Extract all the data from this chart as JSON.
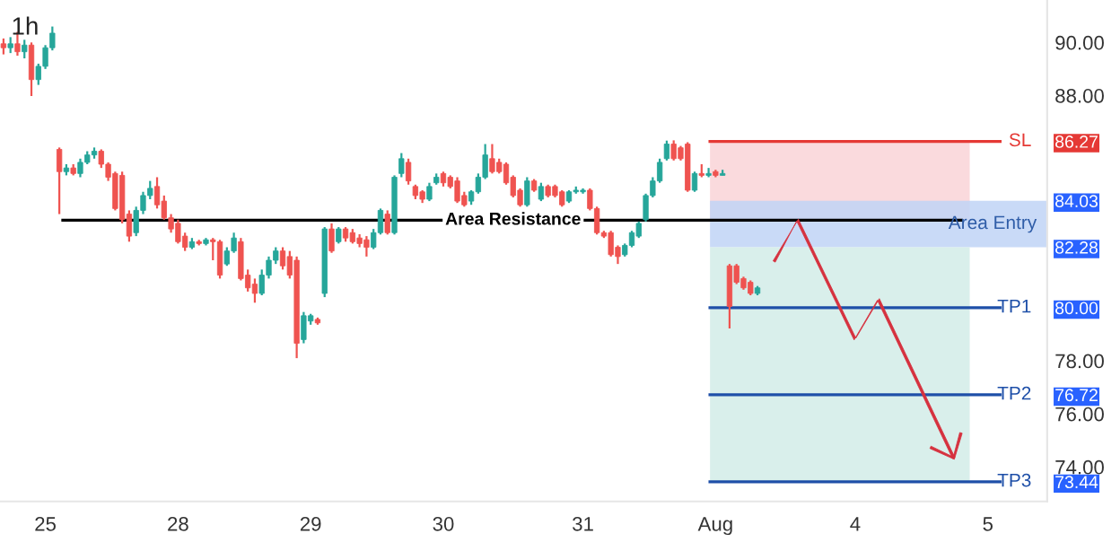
{
  "chart_data": {
    "type": "candlestick",
    "title": "1h",
    "categories": [
      null,
      null,
      null,
      null,
      null,
      null,
      "25",
      null,
      null,
      null,
      null,
      null,
      null,
      null,
      null,
      null,
      null,
      null,
      null,
      null,
      null,
      null,
      null,
      null,
      null,
      "28",
      null,
      null,
      null,
      null,
      null,
      null,
      null,
      null,
      null,
      null,
      null,
      null,
      null,
      null,
      null,
      null,
      null,
      null,
      "29",
      null,
      null,
      null,
      null,
      null,
      null,
      null,
      null,
      null,
      null,
      null,
      null,
      null,
      null,
      null,
      null,
      null,
      null,
      "30",
      null,
      null,
      null,
      null,
      null,
      null,
      null,
      null,
      null,
      null,
      null,
      null,
      null,
      null,
      null,
      null,
      null,
      null,
      null,
      "31",
      null,
      null,
      null,
      null,
      null,
      null,
      null,
      null,
      null,
      null,
      null,
      null,
      null,
      null,
      null,
      null,
      null,
      null,
      "Aug",
      null,
      null,
      null,
      null,
      null,
      null,
      null,
      null,
      null,
      null,
      null,
      null,
      null,
      null,
      null,
      null,
      null,
      null,
      null,
      "4",
      null,
      null,
      null,
      null,
      null,
      null,
      null,
      null,
      null,
      null,
      null,
      null,
      null,
      null,
      null,
      null,
      null,
      null,
      "5",
      null,
      null,
      null,
      null,
      null,
      null,
      null,
      null
    ],
    "ohlc": [
      [
        89.95,
        90.15,
        89.55,
        89.8
      ],
      [
        89.8,
        90.2,
        89.6,
        89.95
      ],
      [
        89.95,
        90.4,
        89.5,
        89.65
      ],
      [
        89.65,
        90.1,
        89.4,
        89.9
      ],
      [
        89.9,
        90.0,
        87.98,
        88.6
      ],
      [
        88.6,
        89.2,
        88.4,
        89.1
      ],
      [
        89.1,
        89.9,
        89.0,
        89.8
      ],
      [
        89.8,
        90.6,
        89.7,
        90.35
      ],
      [
        85.97,
        86.04,
        83.53,
        85.13
      ],
      [
        85.13,
        85.41,
        84.99,
        85.27
      ],
      [
        85.27,
        85.41,
        84.99,
        85.06
      ],
      [
        85.06,
        85.62,
        84.92,
        85.48
      ],
      [
        85.48,
        85.9,
        85.41,
        85.76
      ],
      [
        85.76,
        86.04,
        85.62,
        85.9
      ],
      [
        85.9,
        85.97,
        85.27,
        85.41
      ],
      [
        85.41,
        85.48,
        84.78,
        84.92
      ],
      [
        85.06,
        85.13,
        83.67,
        83.74
      ],
      [
        84.99,
        85.13,
        83.18,
        83.32
      ],
      [
        83.53,
        83.67,
        82.49,
        82.7
      ],
      [
        82.83,
        83.81,
        82.7,
        83.67
      ],
      [
        83.67,
        84.37,
        83.53,
        84.23
      ],
      [
        84.23,
        84.78,
        84.09,
        84.5
      ],
      [
        84.57,
        84.92,
        83.74,
        83.88
      ],
      [
        84.02,
        84.23,
        83.32,
        83.39
      ],
      [
        83.39,
        83.53,
        82.83,
        82.97
      ],
      [
        83.18,
        83.32,
        82.42,
        82.49
      ],
      [
        82.7,
        82.83,
        82.14,
        82.28
      ],
      [
        82.28,
        82.63,
        82.21,
        82.49
      ],
      [
        82.49,
        82.56,
        82.35,
        82.42
      ],
      [
        82.42,
        82.63,
        82.35,
        82.56
      ],
      [
        82.56,
        82.63,
        81.79,
        82.49
      ],
      [
        82.49,
        82.56,
        81.1,
        81.23
      ],
      [
        81.65,
        82.28,
        81.58,
        82.14
      ],
      [
        82.14,
        82.83,
        82.07,
        82.63
      ],
      [
        82.49,
        82.63,
        81.03,
        81.1
      ],
      [
        81.23,
        81.44,
        80.61,
        80.75
      ],
      [
        80.89,
        81.1,
        80.19,
        80.54
      ],
      [
        80.54,
        81.44,
        80.47,
        81.23
      ],
      [
        81.23,
        81.93,
        81.1,
        81.79
      ],
      [
        81.79,
        82.28,
        81.65,
        82.14
      ],
      [
        82.14,
        82.28,
        81.44,
        81.58
      ],
      [
        81.93,
        82.14,
        81.1,
        81.23
      ],
      [
        81.79,
        81.93,
        78.1,
        78.66
      ],
      [
        78.8,
        79.84,
        78.66,
        79.7
      ],
      [
        79.5,
        79.77,
        79.36,
        79.7
      ],
      [
        79.56,
        79.63,
        79.36,
        79.43
      ],
      [
        80.54,
        83.04,
        80.4,
        82.97
      ],
      [
        82.97,
        83.18,
        82.07,
        82.14
      ],
      [
        82.49,
        83.04,
        82.42,
        82.97
      ],
      [
        82.97,
        83.04,
        82.49,
        82.63
      ],
      [
        82.83,
        82.97,
        82.42,
        82.49
      ],
      [
        82.63,
        82.77,
        82.28,
        82.42
      ],
      [
        82.56,
        82.7,
        81.93,
        82.28
      ],
      [
        82.28,
        82.97,
        82.21,
        82.83
      ],
      [
        82.83,
        83.74,
        82.76,
        83.67
      ],
      [
        83.53,
        83.67,
        82.76,
        82.83
      ],
      [
        82.83,
        84.99,
        82.76,
        84.92
      ],
      [
        85.06,
        85.83,
        84.92,
        85.62
      ],
      [
        85.48,
        85.62,
        84.64,
        84.78
      ],
      [
        84.57,
        84.64,
        84.09,
        84.23
      ],
      [
        84.37,
        84.43,
        83.95,
        84.09
      ],
      [
        84.09,
        84.71,
        84.02,
        84.57
      ],
      [
        84.71,
        85.06,
        84.64,
        84.92
      ],
      [
        85.06,
        85.13,
        84.57,
        84.71
      ],
      [
        84.92,
        84.99,
        84.5,
        84.57
      ],
      [
        84.78,
        84.92,
        83.95,
        84.02
      ],
      [
        84.23,
        84.37,
        83.81,
        83.88
      ],
      [
        84.02,
        84.43,
        83.88,
        84.37
      ],
      [
        84.37,
        85.06,
        84.3,
        84.92
      ],
      [
        84.92,
        86.17,
        84.85,
        85.76
      ],
      [
        85.62,
        86.17,
        85.06,
        85.13
      ],
      [
        85.48,
        85.62,
        85.06,
        85.13
      ],
      [
        85.41,
        85.48,
        84.64,
        84.71
      ],
      [
        84.92,
        84.99,
        84.16,
        84.23
      ],
      [
        84.43,
        84.5,
        83.81,
        83.88
      ],
      [
        83.88,
        84.92,
        83.81,
        84.78
      ],
      [
        84.78,
        84.85,
        84.37,
        84.43
      ],
      [
        84.09,
        84.71,
        84.02,
        84.57
      ],
      [
        84.57,
        84.64,
        84.16,
        84.23
      ],
      [
        84.57,
        84.64,
        84.16,
        84.23
      ],
      [
        84.37,
        84.43,
        83.81,
        83.88
      ],
      [
        84.02,
        84.43,
        83.95,
        84.37
      ],
      [
        84.37,
        84.57,
        84.3,
        84.43
      ],
      [
        84.37,
        84.5,
        84.3,
        84.43
      ],
      [
        84.43,
        84.5,
        83.67,
        83.74
      ],
      [
        83.74,
        83.81,
        82.76,
        82.83
      ],
      [
        82.83,
        82.9,
        82.63,
        82.7
      ],
      [
        82.83,
        82.9,
        81.93,
        82.0
      ],
      [
        82.28,
        82.35,
        81.65,
        81.93
      ],
      [
        82.0,
        82.42,
        81.93,
        82.35
      ],
      [
        82.35,
        82.9,
        82.28,
        82.83
      ],
      [
        82.7,
        83.25,
        82.63,
        83.18
      ],
      [
        83.32,
        84.3,
        83.25,
        84.23
      ],
      [
        84.23,
        84.92,
        84.16,
        84.78
      ],
      [
        84.78,
        85.62,
        84.71,
        85.48
      ],
      [
        85.62,
        86.3,
        85.55,
        86.17
      ],
      [
        86.17,
        86.31,
        85.55,
        85.62
      ],
      [
        86.03,
        86.1,
        85.55,
        85.62
      ],
      [
        86.17,
        86.24,
        84.37,
        84.43
      ],
      [
        84.43,
        85.13,
        84.37,
        85.06
      ],
      [
        85.06,
        85.41,
        84.92,
        84.99
      ],
      [
        84.99,
        85.27,
        84.92,
        85.06
      ],
      [
        85.13,
        85.2,
        84.92,
        84.99
      ],
      [
        84.99,
        85.2,
        84.99,
        85.06
      ],
      [
        81.58,
        81.65,
        79.22,
        80.05
      ],
      [
        81.58,
        81.65,
        80.89,
        80.96
      ],
      [
        81.1,
        81.17,
        80.68,
        80.75
      ],
      [
        80.96,
        81.03,
        80.47,
        80.54
      ],
      [
        80.54,
        80.82,
        80.47,
        80.75
      ],
      null,
      null,
      null,
      null,
      null,
      null,
      null,
      null,
      null,
      null,
      null,
      null,
      null,
      null,
      null,
      null,
      null,
      null,
      null,
      null,
      null,
      null,
      null,
      null,
      null,
      null,
      null,
      null,
      null,
      null,
      null,
      null,
      null,
      null,
      null,
      null,
      null,
      null,
      null,
      null,
      null
    ],
    "colors": [
      "#ef5350",
      "#26a69a",
      "#ef5350",
      "#26a69a",
      "#ef5350",
      "#26a69a",
      "#26a69a",
      "#26a69a",
      "#ef5350",
      "#26a69a",
      "#ef5350",
      "#26a69a",
      "#26a69a",
      "#26a69a",
      "#ef5350",
      "#ef5350",
      "#ef5350",
      "#ef5350",
      "#ef5350",
      "#26a69a",
      "#26a69a",
      "#26a69a",
      "#ef5350",
      "#ef5350",
      "#ef5350",
      "#ef5350",
      "#ef5350",
      "#26a69a",
      "#ef5350",
      "#26a69a",
      "#ef5350",
      "#ef5350",
      "#26a69a",
      "#26a69a",
      "#ef5350",
      "#ef5350",
      "#ef5350",
      "#26a69a",
      "#26a69a",
      "#26a69a",
      "#ef5350",
      "#ef5350",
      "#ef5350",
      "#26a69a",
      "#26a69a",
      "#ef5350",
      "#26a69a",
      "#ef5350",
      "#26a69a",
      "#ef5350",
      "#ef5350",
      "#ef5350",
      "#ef5350",
      "#26a69a",
      "#26a69a",
      "#ef5350",
      "#26a69a",
      "#26a69a",
      "#ef5350",
      "#ef5350",
      "#ef5350",
      "#26a69a",
      "#26a69a",
      "#ef5350",
      "#ef5350",
      "#ef5350",
      "#ef5350",
      "#26a69a",
      "#26a69a",
      "#26a69a",
      "#ef5350",
      "#ef5350",
      "#ef5350",
      "#ef5350",
      "#ef5350",
      "#26a69a",
      "#ef5350",
      "#26a69a",
      "#ef5350",
      "#ef5350",
      "#ef5350",
      "#26a69a",
      "#26a69a",
      "#26a69a",
      "#ef5350",
      "#ef5350",
      "#ef5350",
      "#ef5350",
      "#ef5350",
      "#26a69a",
      "#26a69a",
      "#26a69a",
      "#26a69a",
      "#26a69a",
      "#26a69a",
      "#26a69a",
      "#ef5350",
      "#ef5350",
      "#ef5350",
      "#26a69a",
      "#ef5350",
      "#26a69a",
      "#ef5350",
      "#26a69a",
      "#ef5350",
      "#ef5350",
      "#ef5350",
      "#ef5350",
      "#26a69a",
      null,
      null,
      null,
      null,
      null,
      null,
      null,
      null,
      null,
      null,
      null,
      null,
      null,
      null,
      null,
      null,
      null,
      null,
      null,
      null,
      null,
      null,
      null,
      null,
      null,
      null,
      null,
      null,
      null,
      null,
      null,
      null,
      null,
      null,
      null,
      null,
      null,
      null,
      null,
      null,
      null
    ],
    "ylim": [
      72.7,
      91.6
    ],
    "yticks": [
      {
        "value": 90,
        "label": "90.00"
      },
      {
        "value": 88,
        "label": "88.00"
      },
      {
        "value": 86.27,
        "label": "86.27"
      },
      {
        "value": 84.03,
        "label": "84.03"
      },
      {
        "value": 82.28,
        "label": "82.28"
      },
      {
        "value": 80,
        "label": "80.00"
      },
      {
        "value": 78,
        "label": "78.00"
      },
      {
        "value": 76.72,
        "label": "76.72"
      },
      {
        "value": 76,
        "label": "76.00"
      },
      {
        "value": 74,
        "label": "74.00"
      },
      {
        "value": 73.44,
        "label": "73.44"
      }
    ],
    "ref_lines": [
      {
        "axis": "y",
        "value": 86.27,
        "label": "SL",
        "color": "#e53935"
      },
      {
        "axis": "y",
        "value": 83.3,
        "label": "Area Resistance",
        "color": "#000000"
      },
      {
        "axis": "y",
        "value": 80.0,
        "label": "TP1",
        "color": "#1e4fa8"
      },
      {
        "axis": "y",
        "value": 76.72,
        "label": "TP2",
        "color": "#1e4fa8"
      },
      {
        "axis": "y",
        "value": 73.44,
        "label": "TP3",
        "color": "#1e4fa8"
      }
    ],
    "bands": [
      {
        "axis": "y",
        "from": 83.3,
        "to": 86.27,
        "color": "#f9d3d7"
      },
      {
        "axis": "y",
        "from": 82.28,
        "to": 84.03,
        "label": "Area Entry",
        "color": "#bfd4f6"
      },
      {
        "axis": "y",
        "from": 73.44,
        "to": 82.28,
        "color": "#d2ece7"
      }
    ],
    "grid": false
  }
}
